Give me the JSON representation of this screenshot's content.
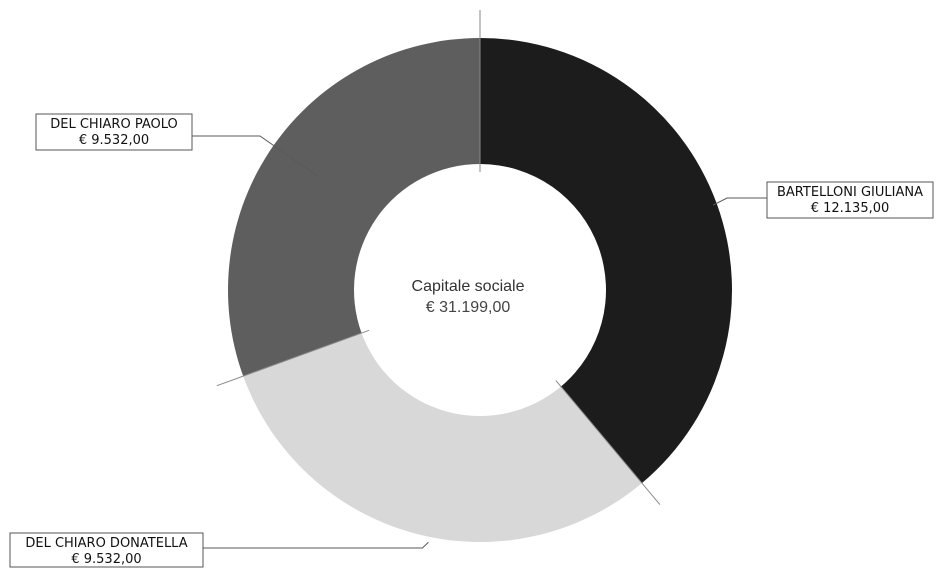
{
  "chart_data": {
    "type": "pie",
    "variant": "donut",
    "center_label": {
      "title": "Capitale sociale",
      "value_text": "€ 31.199,00",
      "value": 31199.0
    },
    "slices": [
      {
        "label": "BARTELLONI GIULIANA",
        "value": 12135.0,
        "value_text": "€ 12.135,00",
        "color": "#1c1c1c"
      },
      {
        "label": "DEL CHIARO DONATELLA",
        "value": 9532.0,
        "value_text": "€ 9.532,00",
        "color": "#d8d8d8"
      },
      {
        "label": "DEL CHIARO PAOLO",
        "value": 9532.0,
        "value_text": "€ 9.532,00",
        "color": "#5e5e5e"
      }
    ],
    "start_angle": "top",
    "direction": "clockwise",
    "legend": "none",
    "grid": false
  }
}
